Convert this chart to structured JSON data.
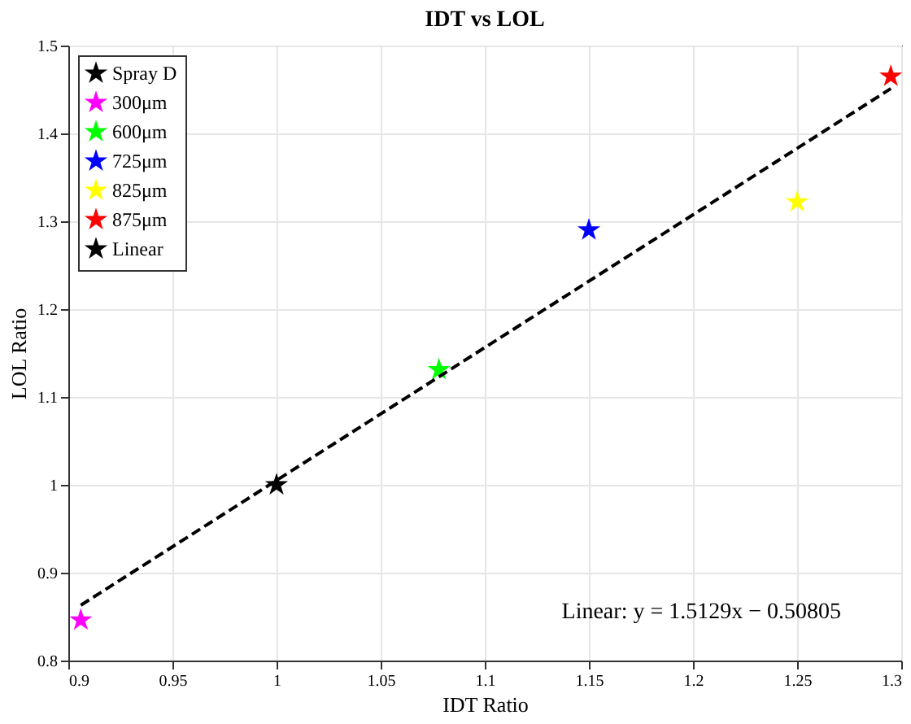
{
  "chart_data": {
    "type": "scatter",
    "title": "IDT vs LOL",
    "xlabel": "IDT Ratio",
    "ylabel": "LOL Ratio",
    "xlim": [
      0.9,
      1.3
    ],
    "xticks": [
      0.9,
      0.95,
      1,
      1.05,
      1.1,
      1.15,
      1.2,
      1.25,
      1.3
    ],
    "ylim": [
      0.8,
      1.5
    ],
    "yticks": [
      0.8,
      0.9,
      1,
      1.1,
      1.2,
      1.3,
      1.4,
      1.5
    ],
    "grid": true,
    "legend": "top left",
    "marker": "star",
    "series": [
      {
        "name": "Spray D",
        "color": "#000000",
        "x": [
          1.0
        ],
        "values": [
          1.0
        ]
      },
      {
        "name": "300μm",
        "color": "#ff00ff",
        "x": [
          0.906
        ],
        "values": [
          0.846
        ]
      },
      {
        "name": "600μm",
        "color": "#00ff00",
        "x": [
          1.078
        ],
        "values": [
          1.131
        ]
      },
      {
        "name": "725μm",
        "color": "#0000ff",
        "x": [
          1.15
        ],
        "values": [
          1.29
        ]
      },
      {
        "name": "825μm",
        "color": "#ffff00",
        "x": [
          1.25
        ],
        "values": [
          1.322
        ]
      },
      {
        "name": "875μm",
        "color": "#ff0000",
        "x": [
          1.295
        ],
        "values": [
          1.465
        ]
      },
      {
        "name": "Linear",
        "type": "line",
        "line_style": "dashed",
        "marker": "none",
        "color": "#000000",
        "x": [
          0.906,
          1.295
        ],
        "values": [
          0.863,
          1.451
        ]
      }
    ],
    "annotations": [
      {
        "text": "Linear: y = 1.5129x − 0.50805"
      }
    ]
  }
}
